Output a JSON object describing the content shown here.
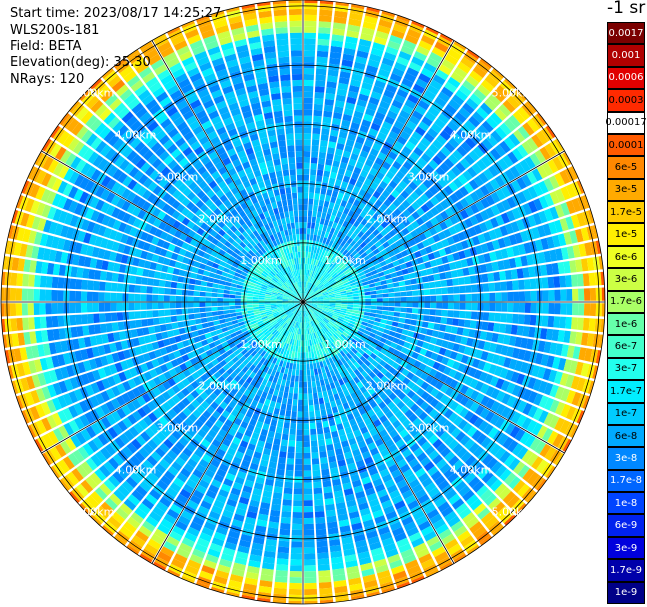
{
  "header": {
    "start_time": "Start time: 2023/08/17 14:25:27",
    "device": "WLS200s-181",
    "field": "Field: BETA",
    "elevation": "Elevation(deg): 35.30",
    "nrays": "NRays: 120"
  },
  "colorbar": {
    "unit": "-1 sr",
    "labels": [
      "0.0017",
      "0.001",
      "0.0006",
      "0.0003",
      "0.00017",
      "0.0001",
      "6e-5",
      "3e-5",
      "1.7e-5",
      "1e-5",
      "6e-6",
      "3e-6",
      "1.7e-6",
      "1e-6",
      "6e-7",
      "3e-7",
      "1.7e-7",
      "1e-7",
      "6e-8",
      "3e-8",
      "1.7e-8",
      "1e-8",
      "6e-9",
      "3e-9",
      "1.7e-9",
      "1e-9"
    ],
    "colors": [
      "#7a0000",
      "#b00000",
      "#e00000",
      "#ff2a00",
      "#ffffff",
      "#ff5a00",
      "#ff8800",
      "#ffaa00",
      "#ffcc00",
      "#ffee00",
      "#eeff22",
      "#ccff44",
      "#aaff66",
      "#66ffaa",
      "#44ffcc",
      "#22ffee",
      "#00eeff",
      "#00ccff",
      "#00aaff",
      "#0088ff",
      "#0066ff",
      "#0044ff",
      "#0022ee",
      "#0000dd",
      "#0000aa",
      "#000088"
    ]
  },
  "chart_data": {
    "type": "heatmap",
    "projection": "polar-ppi",
    "nrays": 120,
    "range_rings_km": [
      1.0,
      2.0,
      3.0,
      4.0,
      5.0
    ],
    "ring_labels": [
      "1.00km",
      "2.00km",
      "3.00km",
      "4.00km",
      "5.00km"
    ],
    "max_range_km": 5.1,
    "radial_profile": [
      {
        "range_km": 0.0,
        "value": "1.7e-7"
      },
      {
        "range_km": 1.0,
        "value": "1e-7"
      },
      {
        "range_km": 2.0,
        "value": "6e-8"
      },
      {
        "range_km": 3.0,
        "value": "3e-8"
      },
      {
        "range_km": 4.0,
        "value": "1.7e-8"
      },
      {
        "range_km": 4.6,
        "value": "3e-6"
      },
      {
        "range_km": 5.0,
        "value": "1.7e-5"
      }
    ],
    "grid": true
  }
}
